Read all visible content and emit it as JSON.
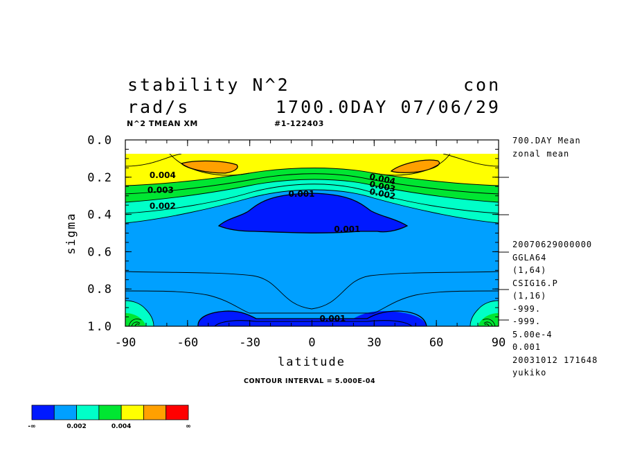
{
  "header": {
    "title_left": "stability N^2",
    "title_right": "con",
    "units": "rad/s",
    "time_label": "1700.0DAY 07/06/29",
    "sub_left": "N^2 TMEAN XM",
    "sub_mid": "#1-122403"
  },
  "sidebar": {
    "line1": "700.DAY Mean",
    "line2": "zonal mean",
    "meta": [
      "20070629000000",
      "GGLA64",
      "(1,64)",
      "CSIG16.P",
      "(1,16)",
      "-999.",
      "-999.",
      "5.00e-4",
      "0.001",
      "20031012 171648",
      "yukiko"
    ]
  },
  "footer": {
    "contour_interval": "CONTOUR INTERVAL = 5.000E-04"
  },
  "colorbar": {
    "colors": [
      "#0019ff",
      "#00a0ff",
      "#00ffc8",
      "#00e632",
      "#ffff00",
      "#ffa000",
      "#ff0000"
    ],
    "labels": [
      "-∞",
      "0.002",
      "0.004",
      "∞"
    ]
  },
  "chart_data": {
    "type": "contour",
    "title": "stability N^2",
    "xlabel": "latitude",
    "ylabel": "sigma",
    "xlim": [
      -90,
      90
    ],
    "ylim": [
      1.0,
      0.0
    ],
    "xticks": [
      "-90",
      "-60",
      "-30",
      "0",
      "30",
      "60",
      "90"
    ],
    "yticks": [
      "0.0",
      "0.2",
      "0.4",
      "0.6",
      "0.8",
      "1.0"
    ],
    "contour_interval": 0.0005,
    "levels": [
      0.001,
      0.0015,
      0.002,
      0.0025,
      0.003,
      0.0035,
      0.004,
      0.0045
    ],
    "contour_labels": [
      {
        "text": "0.004",
        "lat": -72,
        "sigma": 0.19
      },
      {
        "text": "0.003",
        "lat": -73,
        "sigma": 0.27
      },
      {
        "text": "0.002",
        "lat": -72,
        "sigma": 0.355
      },
      {
        "text": "0.001",
        "lat": -5,
        "sigma": 0.29
      },
      {
        "text": "0.001",
        "lat": 17,
        "sigma": 0.48
      },
      {
        "text": "0.001",
        "lat": 10,
        "sigma": 0.96
      },
      {
        "text": "0.004",
        "lat": 34,
        "sigma": 0.21
      },
      {
        "text": "0.003",
        "lat": 34,
        "sigma": 0.25
      },
      {
        "text": "0.002",
        "lat": 34,
        "sigma": 0.29
      }
    ]
  }
}
